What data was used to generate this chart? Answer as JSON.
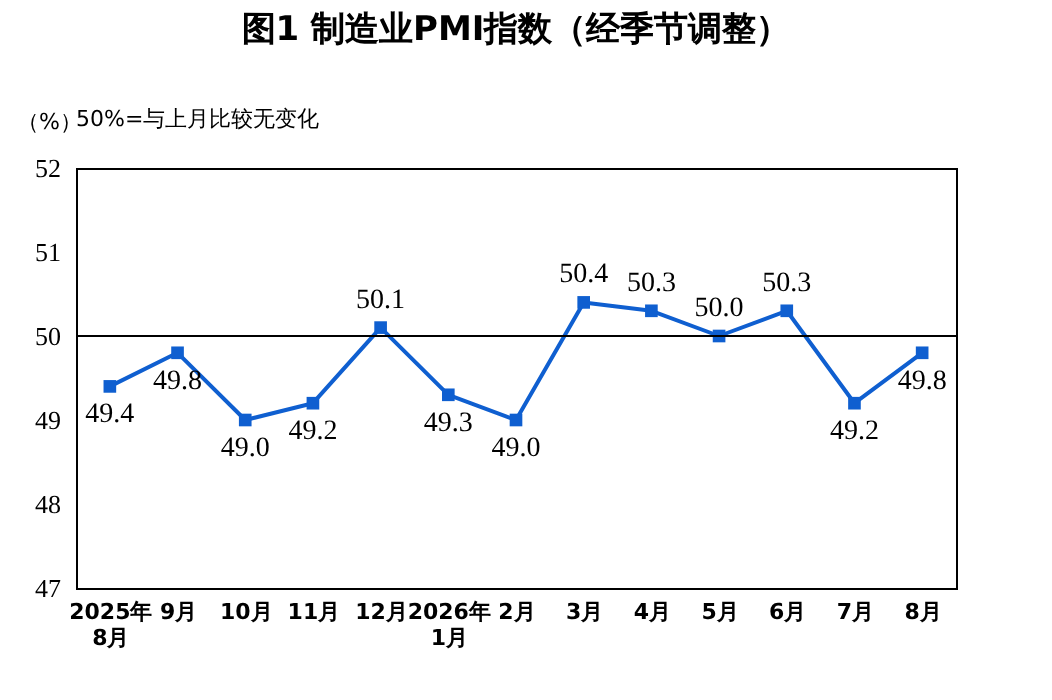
{
  "chart_data": {
    "type": "line",
    "title": "图1 制造业PMI指数（经季节调整）",
    "ylabel": "（%）",
    "annotations": [
      "50%=与上月比较无变化"
    ],
    "categories": [
      "2025年\n8月",
      "9月",
      "10月",
      "11月",
      "12月",
      "2026年\n1月",
      "2月",
      "3月",
      "4月",
      "5月",
      "6月",
      "7月",
      "8月"
    ],
    "series": [
      {
        "color": "#0f5fd0",
        "values": [
          49.4,
          49.8,
          49.0,
          49.2,
          50.1,
          49.3,
          49.0,
          50.4,
          50.3,
          50.0,
          50.3,
          49.2,
          49.8
        ],
        "value_labels": [
          "49.4",
          "49.8",
          "49.0",
          "49.2",
          "50.1",
          "49.3",
          "49.0",
          "50.4",
          "50.3",
          "50.0",
          "50.3",
          "49.2",
          "49.8"
        ]
      }
    ],
    "ylim": [
      47,
      52
    ],
    "yticks": [
      47,
      48,
      49,
      50,
      51,
      52
    ],
    "ref_lines": [
      {
        "axis": "y",
        "value": 50,
        "color": "#000000"
      }
    ],
    "grid": false,
    "marker": "square",
    "line_style": "solid"
  }
}
